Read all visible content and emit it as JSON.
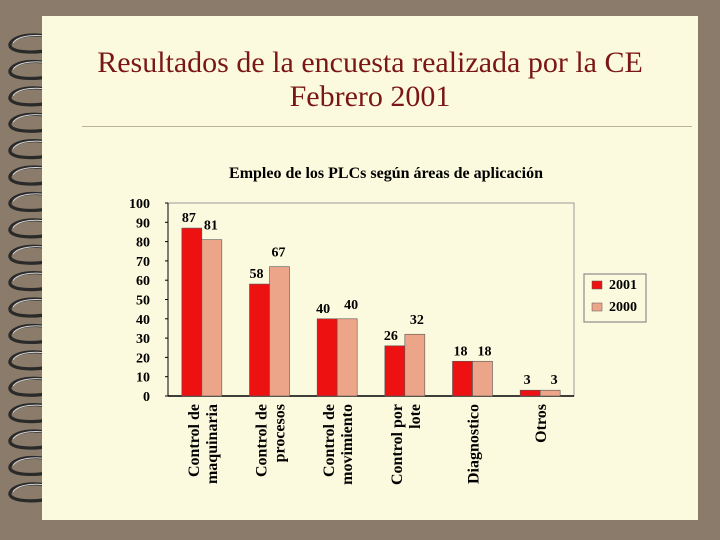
{
  "slide": {
    "title_line1": "Resultados de la encuesta realizada por la CE",
    "title_line2": "Febrero 2001"
  },
  "colors": {
    "background": "#8a7b6a",
    "paper": "#fcfade",
    "title": "#7a1616",
    "series_2001": "#ee1111",
    "series_2000": "#eda58a"
  },
  "chart_data": {
    "type": "bar",
    "title": "Empleo de los PLCs según áreas de aplicación",
    "categories": [
      [
        "Control de",
        "maquinaria"
      ],
      [
        "Control de",
        "procesos"
      ],
      [
        "Control de",
        "movimiento"
      ],
      [
        "Control por",
        "lote"
      ],
      [
        "Diagnostico"
      ],
      [
        "Otros"
      ]
    ],
    "series": [
      {
        "name": "2001",
        "values": [
          87,
          58,
          40,
          26,
          18,
          3
        ]
      },
      {
        "name": "2000",
        "values": [
          81,
          67,
          40,
          32,
          18,
          3
        ]
      }
    ],
    "ylim": [
      0,
      100
    ],
    "yticks": [
      0,
      10,
      20,
      30,
      40,
      50,
      60,
      70,
      80,
      90,
      100
    ],
    "grid": false,
    "legend": "right"
  }
}
